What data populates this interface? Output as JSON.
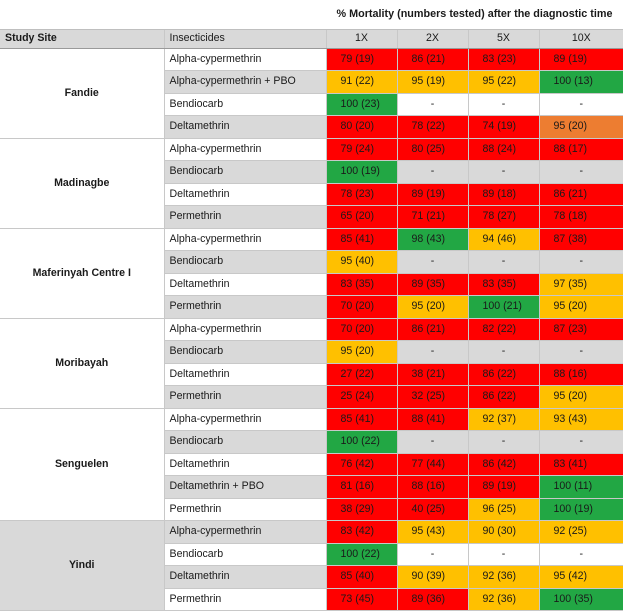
{
  "header": {
    "title": "% Mortality (numbers tested) after the diagnostic time",
    "col_site": "Study Site",
    "col_insecticide": "Insecticides",
    "doses": [
      "1X",
      "2X",
      "5X",
      "10X"
    ]
  },
  "colors": {
    "red": "#ff0000",
    "yellow": "#ffc000",
    "green": "#22a744",
    "orange": "#ed7d31",
    "grey": "#d9d9d9"
  },
  "sites": [
    {
      "name": "Fandie",
      "rows": [
        {
          "insecticide": "Alpha-cypermethrin",
          "shade": false,
          "values": [
            "79 (19)",
            "86 (21)",
            "83 (23)",
            "89 (19)"
          ],
          "status": [
            "r",
            "r",
            "r",
            "r"
          ]
        },
        {
          "insecticide": "Alpha-cypermethrin + PBO",
          "shade": true,
          "values": [
            "91 (22)",
            "95 (19)",
            "95 (22)",
            "100 (13)"
          ],
          "status": [
            "y",
            "y",
            "y",
            "g"
          ]
        },
        {
          "insecticide": "Bendiocarb",
          "shade": false,
          "values": [
            "100 (23)",
            "-",
            "-",
            "-"
          ],
          "status": [
            "g",
            "n",
            "n",
            "n"
          ]
        },
        {
          "insecticide": "Deltamethrin",
          "shade": true,
          "values": [
            "80 (20)",
            "78 (22)",
            "74 (19)",
            "95 (20)"
          ],
          "status": [
            "r",
            "r",
            "r",
            "o"
          ]
        }
      ]
    },
    {
      "name": "Madinagbe",
      "rows": [
        {
          "insecticide": "Alpha-cypermethrin",
          "shade": false,
          "values": [
            "79 (24)",
            "80 (25)",
            "88 (24)",
            "88 (17)"
          ],
          "status": [
            "r",
            "r",
            "r",
            "r"
          ]
        },
        {
          "insecticide": "Bendiocarb",
          "shade": true,
          "values": [
            "100 (19)",
            "-",
            "-",
            "-"
          ],
          "status": [
            "g",
            "gr",
            "gr",
            "gr"
          ]
        },
        {
          "insecticide": "Deltamethrin",
          "shade": false,
          "values": [
            "78 (23)",
            "89 (19)",
            "89 (18)",
            "86 (21)"
          ],
          "status": [
            "r",
            "r",
            "r",
            "r"
          ]
        },
        {
          "insecticide": "Permethrin",
          "shade": true,
          "values": [
            "65 (20)",
            "71 (21)",
            "78 (27)",
            "78 (18)"
          ],
          "status": [
            "r",
            "r",
            "r",
            "r"
          ]
        }
      ]
    },
    {
      "name": "Maferinyah Centre I",
      "rows": [
        {
          "insecticide": "Alpha-cypermethrin",
          "shade": false,
          "values": [
            "85 (41)",
            "98 (43)",
            "94 (46)",
            "87 (38)"
          ],
          "status": [
            "r",
            "g",
            "y",
            "r"
          ]
        },
        {
          "insecticide": "Bendiocarb",
          "shade": true,
          "values": [
            "95 (40)",
            "-",
            "-",
            "-"
          ],
          "status": [
            "y",
            "gr",
            "gr",
            "gr"
          ]
        },
        {
          "insecticide": "Deltamethrin",
          "shade": false,
          "values": [
            "83 (35)",
            "89 (35)",
            "83 (35)",
            "97 (35)"
          ],
          "status": [
            "r",
            "r",
            "r",
            "y"
          ]
        },
        {
          "insecticide": "Permethrin",
          "shade": true,
          "values": [
            "70 (20)",
            "95 (20)",
            "100 (21)",
            "95 (20)"
          ],
          "status": [
            "r",
            "y",
            "g",
            "y"
          ]
        }
      ]
    },
    {
      "name": "Moribayah",
      "rows": [
        {
          "insecticide": "Alpha-cypermethrin",
          "shade": false,
          "values": [
            "70 (20)",
            "86 (21)",
            "82 (22)",
            "87 (23)"
          ],
          "status": [
            "r",
            "r",
            "r",
            "r"
          ]
        },
        {
          "insecticide": "Bendiocarb",
          "shade": true,
          "values": [
            "95 (20)",
            "-",
            "-",
            "-"
          ],
          "status": [
            "y",
            "gr",
            "gr",
            "gr"
          ]
        },
        {
          "insecticide": "Deltamethrin",
          "shade": false,
          "values": [
            "27 (22)",
            "38 (21)",
            "86 (22)",
            "88 (16)"
          ],
          "status": [
            "r",
            "r",
            "r",
            "r"
          ]
        },
        {
          "insecticide": "Permethrin",
          "shade": true,
          "values": [
            "25 (24)",
            "32 (25)",
            "86 (22)",
            "95 (20)"
          ],
          "status": [
            "r",
            "r",
            "r",
            "y"
          ]
        }
      ]
    },
    {
      "name": "Senguelen",
      "rows": [
        {
          "insecticide": "Alpha-cypermethrin",
          "shade": false,
          "values": [
            "85 (41)",
            "88 (41)",
            "92 (37)",
            "93 (43)"
          ],
          "status": [
            "r",
            "r",
            "y",
            "y"
          ]
        },
        {
          "insecticide": "Bendiocarb",
          "shade": true,
          "values": [
            "100 (22)",
            "-",
            "-",
            "-"
          ],
          "status": [
            "g",
            "gr",
            "gr",
            "gr"
          ]
        },
        {
          "insecticide": "Deltamethrin",
          "shade": false,
          "values": [
            "76 (42)",
            "77 (44)",
            "86 (42)",
            "83 (41)"
          ],
          "status": [
            "r",
            "r",
            "r",
            "r"
          ]
        },
        {
          "insecticide": "Deltamethrin + PBO",
          "shade": true,
          "values": [
            "81 (16)",
            "88 (16)",
            "89 (19)",
            "100 (11)"
          ],
          "status": [
            "r",
            "r",
            "r",
            "g"
          ]
        },
        {
          "insecticide": "Permethrin",
          "shade": false,
          "values": [
            "38 (29)",
            "40 (25)",
            "96 (25)",
            "100 (19)"
          ],
          "status": [
            "r",
            "r",
            "y",
            "g"
          ]
        }
      ]
    },
    {
      "name": "Yindi",
      "shade": true,
      "rows": [
        {
          "insecticide": "Alpha-cypermethrin",
          "shade": true,
          "values": [
            "83 (42)",
            "95 (43)",
            "90 (30)",
            "92 (25)"
          ],
          "status": [
            "r",
            "y",
            "y",
            "y"
          ]
        },
        {
          "insecticide": "Bendiocarb",
          "shade": false,
          "values": [
            "100 (22)",
            "-",
            "-",
            "-"
          ],
          "status": [
            "g",
            "n",
            "n",
            "n"
          ]
        },
        {
          "insecticide": "Deltamethrin",
          "shade": true,
          "values": [
            "85 (40)",
            "90 (39)",
            "92 (36)",
            "95 (42)"
          ],
          "status": [
            "r",
            "y",
            "y",
            "y"
          ]
        },
        {
          "insecticide": "Permethrin",
          "shade": false,
          "values": [
            "73 (45)",
            "89 (36)",
            "92 (36)",
            "100 (35)"
          ],
          "status": [
            "r",
            "r",
            "y",
            "g"
          ]
        }
      ]
    }
  ]
}
